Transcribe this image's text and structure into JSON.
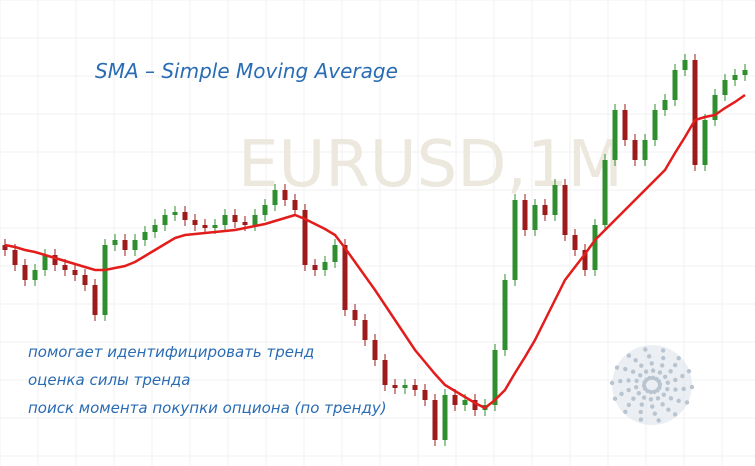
{
  "chart_data": {
    "type": "candlestick",
    "title": "SMA – Simple Moving Average",
    "watermark": "EURUSD,1M",
    "annotations": [
      "помогает идентифицировать тренд",
      "оценка силы тренда",
      "поиск момента покупки опциона (по тренду)"
    ],
    "ylim": [
      0,
      466
    ],
    "grid": true,
    "up_color": "#2f8f2f",
    "down_color": "#9e1b1b",
    "open": [
      221,
      216,
      201,
      186,
      196,
      211,
      201,
      196,
      191,
      181,
      151,
      221,
      226,
      216,
      226,
      234,
      241,
      251,
      254,
      246,
      241,
      238,
      241,
      251,
      244,
      241,
      251,
      261,
      276,
      266,
      256,
      201,
      196,
      204,
      221,
      156,
      146,
      126,
      106,
      81,
      78,
      81,
      76,
      66,
      26,
      71,
      61,
      66,
      56,
      61,
      116,
      186,
      266,
      236,
      261,
      251,
      281,
      231,
      216,
      196,
      241,
      306,
      356,
      326,
      306,
      326,
      356,
      366,
      396,
      406,
      301,
      346,
      371,
      386,
      391
    ],
    "high": [
      227,
      222,
      207,
      202,
      217,
      217,
      207,
      202,
      197,
      187,
      227,
      232,
      232,
      232,
      240,
      247,
      257,
      260,
      260,
      252,
      247,
      247,
      257,
      257,
      250,
      257,
      267,
      282,
      282,
      272,
      262,
      207,
      210,
      227,
      227,
      162,
      152,
      132,
      112,
      87,
      87,
      87,
      82,
      72,
      77,
      77,
      72,
      72,
      67,
      122,
      192,
      272,
      272,
      267,
      267,
      287,
      287,
      237,
      222,
      247,
      312,
      362,
      362,
      332,
      332,
      362,
      372,
      402,
      412,
      412,
      352,
      377,
      392,
      397,
      402
    ],
    "low": [
      210,
      195,
      180,
      180,
      190,
      195,
      190,
      185,
      175,
      145,
      145,
      215,
      210,
      210,
      220,
      228,
      235,
      245,
      240,
      235,
      232,
      232,
      235,
      238,
      235,
      235,
      245,
      255,
      260,
      250,
      195,
      190,
      190,
      198,
      150,
      140,
      120,
      100,
      75,
      72,
      72,
      70,
      60,
      20,
      20,
      55,
      55,
      50,
      50,
      55,
      110,
      180,
      230,
      230,
      245,
      245,
      225,
      210,
      190,
      190,
      235,
      300,
      320,
      300,
      300,
      320,
      350,
      360,
      390,
      295,
      295,
      340,
      365,
      380,
      385
    ],
    "close": [
      216,
      201,
      186,
      196,
      211,
      201,
      196,
      191,
      181,
      151,
      221,
      226,
      216,
      226,
      234,
      241,
      251,
      254,
      246,
      241,
      238,
      241,
      251,
      244,
      241,
      251,
      261,
      276,
      266,
      256,
      201,
      196,
      204,
      221,
      156,
      146,
      126,
      106,
      81,
      78,
      81,
      76,
      66,
      26,
      71,
      61,
      66,
      56,
      61,
      116,
      186,
      266,
      236,
      261,
      251,
      281,
      231,
      216,
      196,
      241,
      306,
      356,
      326,
      306,
      326,
      356,
      366,
      396,
      406,
      301,
      346,
      371,
      386,
      391,
      396
    ],
    "sma": {
      "color": "#e31c1c",
      "values": [
        221,
        219,
        216,
        214,
        211,
        208,
        205,
        202,
        199,
        196,
        196,
        198,
        200,
        204,
        210,
        216,
        222,
        228,
        231,
        232,
        233,
        234,
        235,
        236,
        238,
        240,
        242,
        245,
        248,
        251,
        247,
        242,
        237,
        231,
        218,
        204,
        190,
        176,
        161,
        146,
        131,
        116,
        104,
        92,
        81,
        75,
        69,
        63,
        58,
        66,
        76,
        93,
        109,
        126,
        146,
        166,
        186,
        199,
        212,
        226,
        236,
        246,
        256,
        266,
        276,
        286,
        296,
        313,
        329,
        346,
        349,
        351,
        358,
        364,
        371
      ]
    }
  }
}
